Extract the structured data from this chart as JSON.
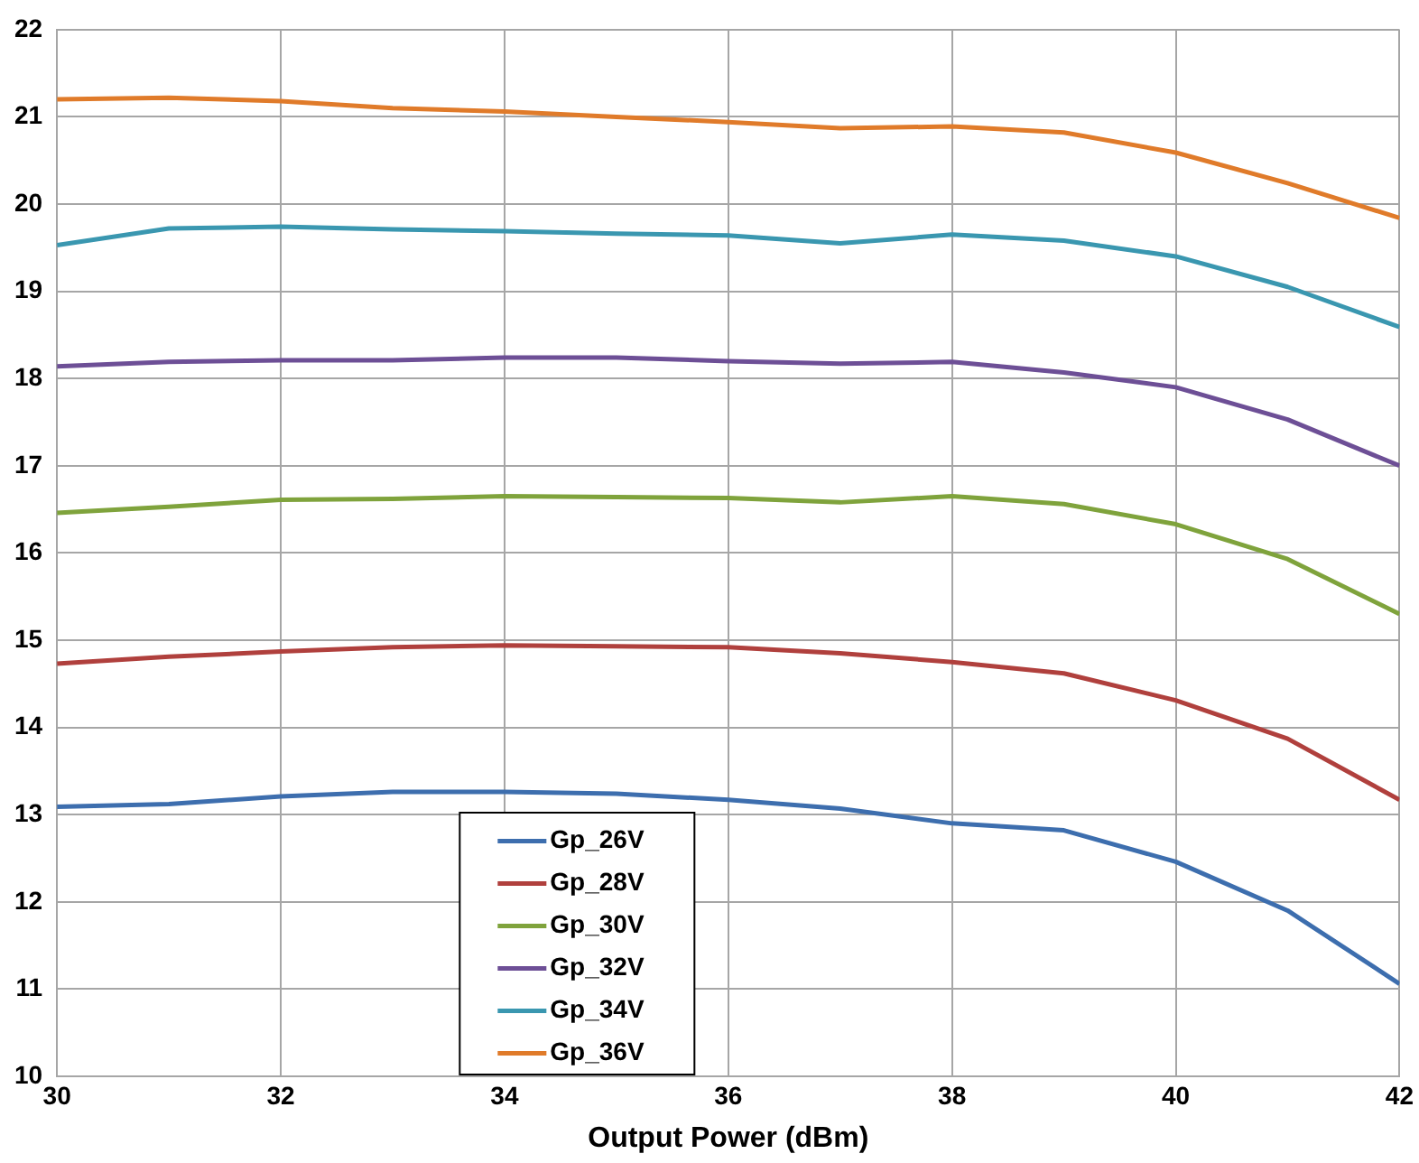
{
  "chart_data": {
    "type": "line",
    "xlabel": "Output Power (dBm)",
    "x": [
      30,
      31,
      32,
      33,
      34,
      35,
      36,
      37,
      38,
      39,
      40,
      41,
      42
    ],
    "series": [
      {
        "name": "Gp_26V",
        "color": "#3d6eae",
        "values": [
          13.09,
          13.12,
          13.21,
          13.26,
          13.26,
          13.24,
          13.17,
          13.07,
          12.9,
          12.82,
          12.46,
          11.9,
          11.06
        ]
      },
      {
        "name": "Gp_28V",
        "color": "#b0403d",
        "values": [
          14.73,
          14.81,
          14.87,
          14.92,
          14.94,
          14.93,
          14.92,
          14.85,
          14.75,
          14.62,
          14.31,
          13.87,
          13.17
        ]
      },
      {
        "name": "Gp_30V",
        "color": "#7fa33c",
        "values": [
          16.46,
          16.53,
          16.61,
          16.62,
          16.65,
          16.64,
          16.63,
          16.58,
          16.65,
          16.56,
          16.33,
          15.93,
          15.3
        ]
      },
      {
        "name": "Gp_32V",
        "color": "#6d4f96",
        "values": [
          18.14,
          18.19,
          18.21,
          18.21,
          18.24,
          18.24,
          18.2,
          18.17,
          18.19,
          18.07,
          17.9,
          17.53,
          17.0
        ]
      },
      {
        "name": "Gp_34V",
        "color": "#3a97b0",
        "values": [
          19.53,
          19.72,
          19.74,
          19.71,
          19.69,
          19.66,
          19.64,
          19.55,
          19.65,
          19.58,
          19.4,
          19.05,
          18.59
        ]
      },
      {
        "name": "Gp_36V",
        "color": "#e07b2a",
        "values": [
          21.2,
          21.22,
          21.18,
          21.1,
          21.06,
          21.0,
          20.94,
          20.87,
          20.89,
          20.82,
          20.59,
          20.24,
          19.84
        ]
      }
    ],
    "xlim": [
      30,
      42
    ],
    "xticks": [
      30,
      32,
      34,
      36,
      38,
      40,
      42
    ],
    "ylim": [
      10,
      22
    ],
    "yticks": [
      10,
      11,
      12,
      13,
      14,
      15,
      16,
      17,
      18,
      19,
      20,
      21,
      22
    ],
    "grid": true,
    "legend": "bottom",
    "marker": "none",
    "line_style": "solid"
  }
}
